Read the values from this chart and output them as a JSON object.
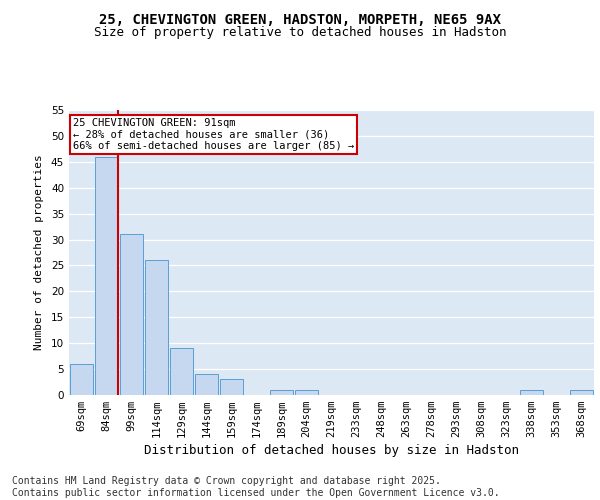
{
  "title1": "25, CHEVINGTON GREEN, HADSTON, MORPETH, NE65 9AX",
  "title2": "Size of property relative to detached houses in Hadston",
  "xlabel": "Distribution of detached houses by size in Hadston",
  "ylabel": "Number of detached properties",
  "categories": [
    "69sqm",
    "84sqm",
    "99sqm",
    "114sqm",
    "129sqm",
    "144sqm",
    "159sqm",
    "174sqm",
    "189sqm",
    "204sqm",
    "219sqm",
    "233sqm",
    "248sqm",
    "263sqm",
    "278sqm",
    "293sqm",
    "308sqm",
    "323sqm",
    "338sqm",
    "353sqm",
    "368sqm"
  ],
  "values": [
    6,
    46,
    31,
    26,
    9,
    4,
    3,
    0,
    1,
    1,
    0,
    0,
    0,
    0,
    0,
    0,
    0,
    0,
    1,
    0,
    1
  ],
  "bar_color": "#c5d8f0",
  "bar_edge_color": "#5a9fd4",
  "background_color": "#dce9f5",
  "grid_color": "#ffffff",
  "vline_x_idx": 1,
  "vline_color": "#cc0000",
  "annotation_text": "25 CHEVINGTON GREEN: 91sqm\n← 28% of detached houses are smaller (36)\n66% of semi-detached houses are larger (85) →",
  "annotation_box_color": "#ffffff",
  "annotation_box_edge": "#cc0000",
  "ylim": [
    0,
    55
  ],
  "yticks": [
    0,
    5,
    10,
    15,
    20,
    25,
    30,
    35,
    40,
    45,
    50,
    55
  ],
  "footer": "Contains HM Land Registry data © Crown copyright and database right 2025.\nContains public sector information licensed under the Open Government Licence v3.0.",
  "footer_fontsize": 7.0,
  "title1_fontsize": 10,
  "title2_fontsize": 9,
  "xlabel_fontsize": 9,
  "ylabel_fontsize": 8,
  "tick_fontsize": 7.5
}
